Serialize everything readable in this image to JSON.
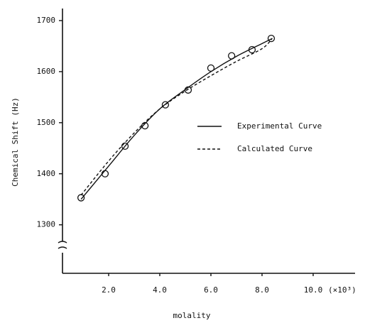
{
  "chart_data": {
    "type": "line",
    "x_label": "molality",
    "x_unit": "(×10³)",
    "y_label": "Chemical Shift (Hz)",
    "xlim": [
      0,
      11
    ],
    "ylim": [
      1205,
      1725
    ],
    "xticks": [
      {
        "value": 2,
        "label": "2.0"
      },
      {
        "value": 4,
        "label": "4.0"
      },
      {
        "value": 6,
        "label": "6.0"
      },
      {
        "value": 8,
        "label": "8.0"
      },
      {
        "value": 10,
        "label": "10.0"
      }
    ],
    "yticks": [
      1300,
      1400,
      1500,
      1600,
      1700
    ],
    "points": {
      "x": [
        0.92,
        1.86,
        2.64,
        3.42,
        4.22,
        5.11,
        6.0,
        6.81,
        7.61,
        8.36
      ],
      "values": [
        1353,
        1400,
        1454,
        1494,
        1535,
        1564,
        1607,
        1631,
        1643,
        1665
      ]
    },
    "series": [
      {
        "name": "Experimental Curve",
        "color": "#111111",
        "dash": "none",
        "x": [
          0.92,
          2,
          3,
          4,
          5,
          6,
          7,
          8,
          8.4
        ],
        "values": [
          1350,
          1415,
          1475,
          1527,
          1565,
          1600,
          1630,
          1655,
          1665
        ]
      },
      {
        "name": "Calculated Curve",
        "color": "#111111",
        "dash": "4 3",
        "x": [
          0.92,
          2,
          3,
          4,
          5,
          6,
          7,
          8,
          8.4
        ],
        "values": [
          1358,
          1425,
          1480,
          1527,
          1562,
          1592,
          1620,
          1645,
          1665
        ]
      }
    ]
  }
}
